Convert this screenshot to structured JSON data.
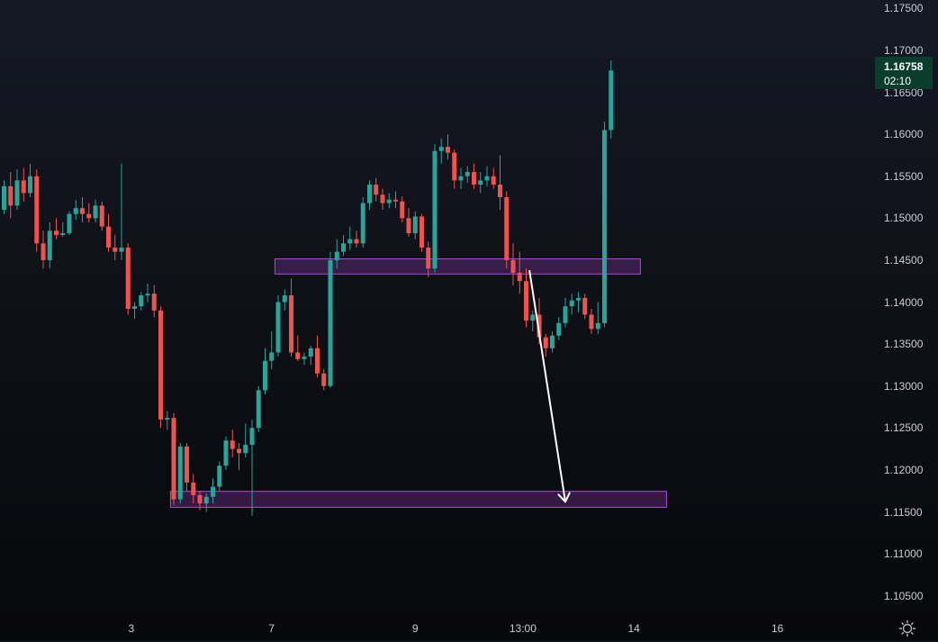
{
  "colors": {
    "up": "#26a69a",
    "down": "#ef5350",
    "zone_stroke": "#b14ad8",
    "zone_fill": "#6a2a86",
    "arrow": "#ffffff",
    "price_badge": "#0b3d2c"
  },
  "price_badge": {
    "price": "1.16758",
    "countdown": "02:10"
  },
  "icons": {
    "settings": "gear-icon"
  },
  "chart_data": {
    "type": "candlestick",
    "ylim": [
      1.1025,
      1.176
    ],
    "y_ticks": [
      "1.17500",
      "1.17000",
      "1.16500",
      "1.16000",
      "1.15500",
      "1.15000",
      "1.14500",
      "1.14000",
      "1.13500",
      "1.13000",
      "1.12500",
      "1.12000",
      "1.11500",
      "1.11000",
      "1.10500"
    ],
    "x_ticks": [
      {
        "label": "3",
        "index": 19.5
      },
      {
        "label": "7",
        "index": 41
      },
      {
        "label": "9",
        "index": 63
      },
      {
        "label": "13:00",
        "index": 79.5
      },
      {
        "label": "14",
        "index": 96.5
      },
      {
        "label": "16",
        "index": 118.5
      }
    ],
    "candles": [
      [
        1.151,
        1.1545,
        1.1505,
        1.1538
      ],
      [
        1.1538,
        1.1555,
        1.15,
        1.1515
      ],
      [
        1.1515,
        1.1558,
        1.151,
        1.1545
      ],
      [
        1.1545,
        1.156,
        1.152,
        1.153
      ],
      [
        1.153,
        1.1565,
        1.1525,
        1.155
      ],
      [
        1.155,
        1.1558,
        1.146,
        1.147
      ],
      [
        1.147,
        1.1485,
        1.144,
        1.145
      ],
      [
        1.145,
        1.1495,
        1.144,
        1.1485
      ],
      [
        1.1485,
        1.15,
        1.1475,
        1.148
      ],
      [
        1.148,
        1.1495,
        1.1478,
        1.1482
      ],
      [
        1.1482,
        1.1508,
        1.148,
        1.1505
      ],
      [
        1.1505,
        1.1522,
        1.1498,
        1.1512
      ],
      [
        1.1512,
        1.1525,
        1.1495,
        1.1505
      ],
      [
        1.1505,
        1.1518,
        1.1495,
        1.15
      ],
      [
        1.15,
        1.1522,
        1.1495,
        1.1515
      ],
      [
        1.1515,
        1.152,
        1.1485,
        1.149
      ],
      [
        1.149,
        1.1505,
        1.146,
        1.1465
      ],
      [
        1.1465,
        1.148,
        1.145,
        1.146
      ],
      [
        1.146,
        1.1565,
        1.145,
        1.1465
      ],
      [
        1.1465,
        1.147,
        1.1385,
        1.1392
      ],
      [
        1.1392,
        1.14,
        1.138,
        1.1395
      ],
      [
        1.1395,
        1.1412,
        1.139,
        1.1408
      ],
      [
        1.1408,
        1.1422,
        1.14,
        1.141
      ],
      [
        1.141,
        1.142,
        1.1382,
        1.139
      ],
      [
        1.139,
        1.1395,
        1.125,
        1.126
      ],
      [
        1.126,
        1.127,
        1.1248,
        1.1262
      ],
      [
        1.1262,
        1.1268,
        1.1158,
        1.1165
      ],
      [
        1.1165,
        1.1232,
        1.116,
        1.1228
      ],
      [
        1.1228,
        1.1232,
        1.1175,
        1.1185
      ],
      [
        1.1185,
        1.1195,
        1.116,
        1.117
      ],
      [
        1.117,
        1.1175,
        1.1152,
        1.116
      ],
      [
        1.116,
        1.1172,
        1.115,
        1.1168
      ],
      [
        1.1168,
        1.119,
        1.116,
        1.118
      ],
      [
        1.118,
        1.121,
        1.1175,
        1.1205
      ],
      [
        1.1205,
        1.124,
        1.12,
        1.1235
      ],
      [
        1.1235,
        1.1248,
        1.1215,
        1.1225
      ],
      [
        1.1225,
        1.1232,
        1.12,
        1.122
      ],
      [
        1.122,
        1.1255,
        1.1215,
        1.123
      ],
      [
        1.123,
        1.126,
        1.1145,
        1.125
      ],
      [
        1.125,
        1.13,
        1.1245,
        1.1295
      ],
      [
        1.1295,
        1.1345,
        1.129,
        1.133
      ],
      [
        1.133,
        1.1365,
        1.132,
        1.134
      ],
      [
        1.134,
        1.1408,
        1.1335,
        1.14
      ],
      [
        1.14,
        1.1415,
        1.139,
        1.1408
      ],
      [
        1.1408,
        1.1428,
        1.1335,
        1.134
      ],
      [
        1.134,
        1.136,
        1.133,
        1.1332
      ],
      [
        1.1332,
        1.134,
        1.1325,
        1.1335
      ],
      [
        1.1335,
        1.1348,
        1.1325,
        1.1345
      ],
      [
        1.1345,
        1.136,
        1.131,
        1.1315
      ],
      [
        1.1315,
        1.132,
        1.1295,
        1.13
      ],
      [
        1.13,
        1.146,
        1.1298,
        1.145
      ],
      [
        1.145,
        1.1475,
        1.144,
        1.146
      ],
      [
        1.146,
        1.148,
        1.1455,
        1.147
      ],
      [
        1.147,
        1.149,
        1.1462,
        1.1475
      ],
      [
        1.1475,
        1.1485,
        1.1465,
        1.147
      ],
      [
        1.147,
        1.1525,
        1.1465,
        1.1518
      ],
      [
        1.1518,
        1.1545,
        1.151,
        1.154
      ],
      [
        1.154,
        1.1548,
        1.152,
        1.1528
      ],
      [
        1.1528,
        1.1535,
        1.151,
        1.1518
      ],
      [
        1.1518,
        1.153,
        1.1512,
        1.1522
      ],
      [
        1.1522,
        1.1532,
        1.1512,
        1.152
      ],
      [
        1.152,
        1.1526,
        1.1495,
        1.15
      ],
      [
        1.15,
        1.1512,
        1.1478,
        1.1482
      ],
      [
        1.1482,
        1.1508,
        1.1475,
        1.1502
      ],
      [
        1.1502,
        1.1505,
        1.146,
        1.1465
      ],
      [
        1.1465,
        1.1472,
        1.143,
        1.144
      ],
      [
        1.144,
        1.1588,
        1.1435,
        1.158
      ],
      [
        1.158,
        1.1595,
        1.1565,
        1.1585
      ],
      [
        1.1585,
        1.16,
        1.157,
        1.1578
      ],
      [
        1.1578,
        1.1582,
        1.1535,
        1.1545
      ],
      [
        1.1545,
        1.156,
        1.1535,
        1.155
      ],
      [
        1.155,
        1.1562,
        1.1542,
        1.1555
      ],
      [
        1.1555,
        1.1565,
        1.1535,
        1.154
      ],
      [
        1.154,
        1.1555,
        1.153,
        1.1545
      ],
      [
        1.1545,
        1.1562,
        1.1538,
        1.155
      ],
      [
        1.155,
        1.156,
        1.1535,
        1.154
      ],
      [
        1.154,
        1.1575,
        1.151,
        1.1525
      ],
      [
        1.1525,
        1.1532,
        1.144,
        1.145
      ],
      [
        1.145,
        1.147,
        1.142,
        1.1435
      ],
      [
        1.1435,
        1.146,
        1.141,
        1.1425
      ],
      [
        1.1425,
        1.144,
        1.137,
        1.1378
      ],
      [
        1.1378,
        1.139,
        1.1365,
        1.1385
      ],
      [
        1.1385,
        1.1405,
        1.135,
        1.1358
      ],
      [
        1.1358,
        1.1362,
        1.1335,
        1.1345
      ],
      [
        1.1345,
        1.1365,
        1.134,
        1.136
      ],
      [
        1.136,
        1.1382,
        1.1355,
        1.1375
      ],
      [
        1.1375,
        1.1405,
        1.137,
        1.1395
      ],
      [
        1.1395,
        1.141,
        1.1385,
        1.1402
      ],
      [
        1.1402,
        1.1412,
        1.1388,
        1.1405
      ],
      [
        1.1405,
        1.141,
        1.138,
        1.1385
      ],
      [
        1.1385,
        1.1392,
        1.1362,
        1.1368
      ],
      [
        1.1368,
        1.14,
        1.1362,
        1.1375
      ],
      [
        1.1375,
        1.1615,
        1.137,
        1.1605
      ],
      [
        1.1605,
        1.1688,
        1.1595,
        1.1676
      ]
    ],
    "zones": [
      {
        "from": 1.14335,
        "to": 1.14515,
        "start_index": 41.5,
        "end_index": 97.5
      },
      {
        "from": 1.11555,
        "to": 1.11745,
        "start_index": 25.5,
        "end_index": 101.5
      }
    ],
    "arrow": {
      "from": {
        "index": 80.5,
        "price": 1.1438
      },
      "to": {
        "index": 86.0,
        "price": 1.1162
      }
    }
  }
}
